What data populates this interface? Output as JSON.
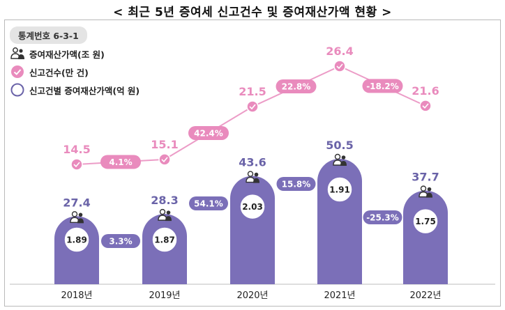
{
  "title": "< 최근 5년 증여세 신고건수 및 증여재산가액 현황 >",
  "stat_badge": "통계번호 6-3-1",
  "legend": [
    {
      "label": "증여재산가액(조 원)",
      "icon": "people-icon"
    },
    {
      "label": "신고건수(만 건)",
      "icon": "pink-check-icon"
    },
    {
      "label": "신고건별 증여재산가액(억 원)",
      "icon": "purple-circle-icon"
    }
  ],
  "colors": {
    "bar": "#7b6fb8",
    "bar_label": "#6a63a8",
    "pink": "#e98bbd",
    "pink_line": "#ec9cc7",
    "pill_text": "#ffffff"
  },
  "chart_data": {
    "type": "bar+line",
    "categories": [
      "2018년",
      "2019년",
      "2020년",
      "2021년",
      "2022년"
    ],
    "series": [
      {
        "name": "증여재산가액(조 원)",
        "type": "bar",
        "values": [
          27.4,
          28.3,
          43.6,
          50.5,
          37.7
        ]
      },
      {
        "name": "신고건수(만 건)",
        "type": "line",
        "values": [
          14.5,
          15.1,
          21.5,
          26.4,
          21.6
        ]
      },
      {
        "name": "신고건별 증여재산가액(억 원)",
        "type": "circle-label",
        "values": [
          1.89,
          1.87,
          2.03,
          1.91,
          1.75
        ]
      }
    ],
    "amount_growth": [
      "3.3%",
      "54.1%",
      "15.8%",
      "-25.3%"
    ],
    "count_growth": [
      "4.1%",
      "42.4%",
      "22.8%",
      "-18.2%"
    ],
    "xlabel": "",
    "ylabel": ""
  }
}
